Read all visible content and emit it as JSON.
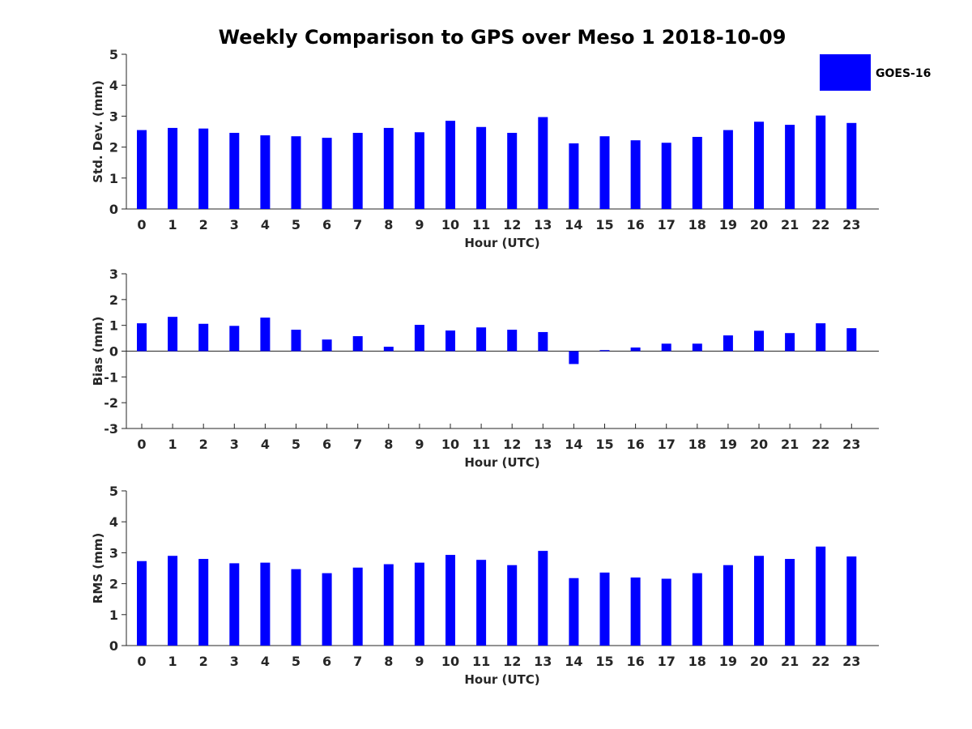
{
  "title": "Weekly Comparison to GPS over Meso 1 2018-10-09",
  "legend": {
    "label": "GOES-16",
    "color": "#0000ff",
    "placement": "top-right"
  },
  "chart_data": [
    {
      "type": "bar",
      "id": "std",
      "xlabel": "Hour (UTC)",
      "ylabel": "Std. Dev. (mm)",
      "ylim": [
        0,
        5
      ],
      "yticks": [
        0,
        1,
        2,
        3,
        4,
        5
      ],
      "ytick_labels": [
        "0",
        "1",
        "2",
        "3",
        "4",
        "5"
      ],
      "categories": [
        "0",
        "1",
        "2",
        "3",
        "4",
        "5",
        "6",
        "7",
        "8",
        "9",
        "10",
        "11",
        "12",
        "13",
        "14",
        "15",
        "16",
        "17",
        "18",
        "19",
        "20",
        "21",
        "22",
        "23"
      ],
      "series": [
        {
          "name": "GOES-16",
          "values": [
            2.55,
            2.62,
            2.6,
            2.46,
            2.38,
            2.35,
            2.3,
            2.46,
            2.62,
            2.48,
            2.85,
            2.65,
            2.46,
            2.97,
            2.12,
            2.35,
            2.22,
            2.14,
            2.33,
            2.55,
            2.82,
            2.72,
            3.02,
            2.78
          ]
        }
      ]
    },
    {
      "type": "bar",
      "id": "bias",
      "xlabel": "Hour (UTC)",
      "ylabel": "Bias (mm)",
      "ylim": [
        -3,
        3
      ],
      "yticks": [
        -3,
        -2,
        -1,
        0,
        1,
        2,
        3
      ],
      "ytick_labels": [
        "-3",
        "-2",
        "-1",
        "0",
        "1",
        "2",
        "3"
      ],
      "zero_line": true,
      "categories": [
        "0",
        "1",
        "2",
        "3",
        "4",
        "5",
        "6",
        "7",
        "8",
        "9",
        "10",
        "11",
        "12",
        "13",
        "14",
        "15",
        "16",
        "17",
        "18",
        "19",
        "20",
        "21",
        "22",
        "23"
      ],
      "series": [
        {
          "name": "GOES-16",
          "values": [
            1.08,
            1.33,
            1.06,
            0.98,
            1.3,
            0.83,
            0.45,
            0.58,
            0.17,
            1.02,
            0.8,
            0.92,
            0.83,
            0.74,
            -0.5,
            0.04,
            0.14,
            0.29,
            0.29,
            0.61,
            0.79,
            0.7,
            1.08,
            0.89
          ]
        }
      ]
    },
    {
      "type": "bar",
      "id": "rms",
      "xlabel": "Hour (UTC)",
      "ylabel": "RMS (mm)",
      "ylim": [
        0,
        5
      ],
      "yticks": [
        0,
        1,
        2,
        3,
        4,
        5
      ],
      "ytick_labels": [
        "0",
        "1",
        "2",
        "3",
        "4",
        "5"
      ],
      "categories": [
        "0",
        "1",
        "2",
        "3",
        "4",
        "5",
        "6",
        "7",
        "8",
        "9",
        "10",
        "11",
        "12",
        "13",
        "14",
        "15",
        "16",
        "17",
        "18",
        "19",
        "20",
        "21",
        "22",
        "23"
      ],
      "series": [
        {
          "name": "GOES-16",
          "values": [
            2.73,
            2.9,
            2.8,
            2.66,
            2.68,
            2.47,
            2.34,
            2.52,
            2.63,
            2.68,
            2.93,
            2.77,
            2.6,
            3.06,
            2.18,
            2.36,
            2.2,
            2.16,
            2.34,
            2.6,
            2.9,
            2.8,
            3.2,
            2.88
          ]
        }
      ]
    }
  ]
}
